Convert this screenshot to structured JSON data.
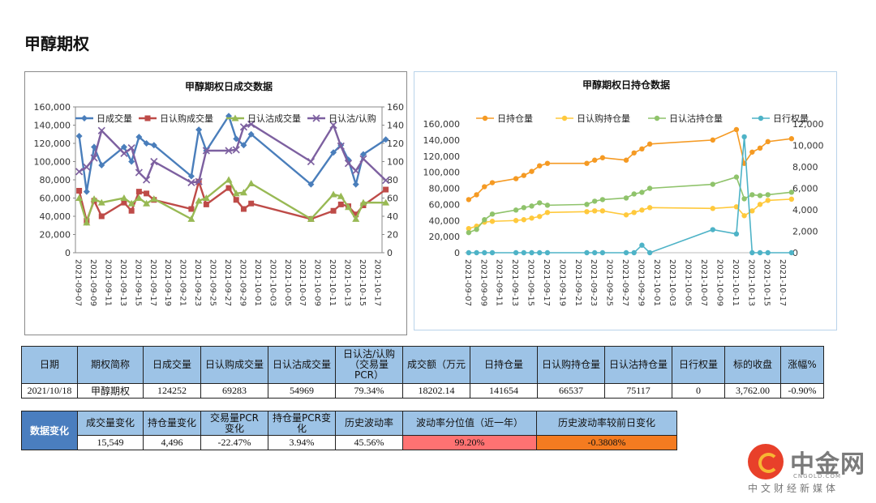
{
  "page": {
    "title": "甲醇期权"
  },
  "chart_data": [
    {
      "type": "line",
      "title": "甲醇期权日成交数据",
      "dates": [
        "2021-09-07",
        "2021-09-08",
        "2021-09-09",
        "2021-09-10",
        "2021-09-13",
        "2021-09-14",
        "2021-09-15",
        "2021-09-16",
        "2021-09-17",
        "2021-09-22",
        "2021-09-23",
        "2021-09-24",
        "2021-09-27",
        "2021-09-28",
        "2021-09-29",
        "2021-09-30",
        "2021-10-08",
        "2021-10-11",
        "2021-10-12",
        "2021-10-13",
        "2021-10-14",
        "2021-10-15",
        "2021-10-18"
      ],
      "x_tick_labels": [
        "2021-09-07",
        "2021-09-09",
        "2021-09-11",
        "2021-09-13",
        "2021-09-15",
        "2021-09-17",
        "2021-09-19",
        "2021-09-21",
        "2021-09-23",
        "2021-09-25",
        "2021-09-27",
        "2021-09-29",
        "2021-10-01",
        "2021-10-03",
        "2021-10-05",
        "2021-10-07",
        "2021-10-09",
        "2021-10-11",
        "2021-10-13",
        "2021-10-15",
        "2021-10-17"
      ],
      "y_left": {
        "range": [
          0,
          160000
        ],
        "ticks": [
          "0",
          "20,000",
          "40,000",
          "60,000",
          "80,000",
          "100,000",
          "120,000",
          "140,000",
          "160,000"
        ]
      },
      "y_right": {
        "range": [
          0,
          160
        ],
        "ticks": [
          "0",
          "20",
          "40",
          "60",
          "80",
          "100",
          "120",
          "140",
          "160"
        ]
      },
      "series": [
        {
          "name": "日成交量",
          "axis": "left",
          "color": "#4a7ebb",
          "marker": "diamond",
          "values": [
            128000,
            67000,
            116000,
            96000,
            116000,
            100000,
            127000,
            120000,
            118000,
            84000,
            135000,
            112000,
            150000,
            125000,
            118000,
            130000,
            75000,
            110000,
            118000,
            102000,
            75000,
            108000,
            124252
          ]
        },
        {
          "name": "日认购成交量",
          "axis": "left",
          "color": "#be4b48",
          "marker": "square",
          "values": [
            68000,
            35000,
            57000,
            40000,
            55000,
            46000,
            67000,
            65000,
            58000,
            48000,
            78000,
            53000,
            71000,
            58000,
            48000,
            54000,
            37000,
            46000,
            53000,
            51000,
            42000,
            52000,
            69283
          ]
        },
        {
          "name": "日认沽成交量",
          "axis": "left",
          "color": "#98b954",
          "marker": "triangle",
          "values": [
            60000,
            33000,
            59000,
            55000,
            60000,
            54000,
            60000,
            54000,
            59000,
            37000,
            57000,
            60000,
            80000,
            65000,
            66000,
            76000,
            37000,
            64000,
            62000,
            50000,
            37000,
            55000,
            54969
          ]
        },
        {
          "name": "日认沽/认购成交量PCR",
          "axis": "right",
          "color": "#7d60a0",
          "marker": "x",
          "values": [
            89,
            94,
            104,
            134,
            109,
            115,
            88,
            80,
            100,
            77,
            78,
            112,
            112,
            113,
            138,
            141,
            100,
            140,
            117,
            98,
            90,
            103,
            79.34
          ]
        }
      ],
      "legend_labels": [
        "日成交量",
        "日认购成交量",
        "日认沽成交量",
        "日认沽/认购"
      ]
    },
    {
      "type": "line",
      "title": "甲醇期权日持仓数据",
      "dates": [
        "2021-09-07",
        "2021-09-08",
        "2021-09-09",
        "2021-09-10",
        "2021-09-13",
        "2021-09-14",
        "2021-09-15",
        "2021-09-16",
        "2021-09-17",
        "2021-09-22",
        "2021-09-23",
        "2021-09-24",
        "2021-09-27",
        "2021-09-28",
        "2021-09-29",
        "2021-09-30",
        "2021-10-08",
        "2021-10-11",
        "2021-10-12",
        "2021-10-13",
        "2021-10-14",
        "2021-10-15",
        "2021-10-18"
      ],
      "x_tick_labels": [
        "2021-09-07",
        "2021-09-09",
        "2021-09-11",
        "2021-09-13",
        "2021-09-15",
        "2021-09-17",
        "2021-09-19",
        "2021-09-21",
        "2021-09-23",
        "2021-09-25",
        "2021-09-27",
        "2021-09-29",
        "2021-10-01",
        "2021-10-03",
        "2021-10-05",
        "2021-10-07",
        "2021-10-09",
        "2021-10-11",
        "2021-10-13",
        "2021-10-15",
        "2021-10-17"
      ],
      "y_left": {
        "range": [
          0,
          160000
        ],
        "ticks": [
          "0",
          "20,000",
          "40,000",
          "60,000",
          "80,000",
          "100,000",
          "120,000",
          "140,000",
          "160,000"
        ]
      },
      "y_right": {
        "range": [
          0,
          12000
        ],
        "ticks": [
          "0",
          "2,000",
          "4,000",
          "6,000",
          "8,000",
          "10,000",
          "12,000"
        ]
      },
      "series": [
        {
          "name": "日持仓量",
          "axis": "left",
          "color": "#f59a23",
          "values": [
            66000,
            72000,
            82000,
            87000,
            92000,
            96000,
            101000,
            108000,
            111000,
            111000,
            115000,
            118000,
            115000,
            124000,
            129000,
            135000,
            140000,
            153000,
            111000,
            125000,
            130000,
            138000,
            141654
          ]
        },
        {
          "name": "日认购持仓量",
          "axis": "left",
          "color": "#ffc93c",
          "values": [
            30000,
            33000,
            38000,
            39000,
            40000,
            41000,
            43000,
            45000,
            50000,
            51000,
            52000,
            52000,
            47000,
            50000,
            53000,
            56000,
            55000,
            57000,
            46000,
            52000,
            60000,
            65000,
            66537
          ]
        },
        {
          "name": "日认沽持仓量",
          "axis": "left",
          "color": "#8fc36b",
          "values": [
            25000,
            29000,
            41000,
            48000,
            53000,
            56000,
            58000,
            62000,
            59000,
            60000,
            64000,
            66000,
            68000,
            73000,
            75000,
            80000,
            85000,
            94000,
            67000,
            72000,
            71000,
            72000,
            75117
          ]
        },
        {
          "name": "日行权量",
          "axis": "right",
          "color": "#4eb3c7",
          "values": [
            0,
            0,
            0,
            0,
            0,
            0,
            0,
            0,
            0,
            0,
            0,
            0,
            0,
            0,
            700,
            0,
            2150,
            1750,
            10800,
            0,
            0,
            0,
            0
          ]
        }
      ],
      "legend_labels": [
        "日持仓量",
        "日认购持仓量",
        "日认沽持仓量",
        "日行权量"
      ]
    }
  ],
  "table1": {
    "headers": [
      "日期",
      "期权简称",
      "日成交量",
      "日认购成交量",
      "日认沽成交量",
      "日认沽/认购\n（交易量\nPCR）",
      "成交额（万元",
      "日持仓量",
      "日认购持仓量",
      "日认沽持仓量",
      "日行权量",
      "标的收盘",
      "涨幅%"
    ],
    "values": [
      "2021/10/18",
      "甲醇期权",
      "124252",
      "69283",
      "54969",
      "79.34%",
      "18202.14",
      "141654",
      "66537",
      "75117",
      "0",
      "3,762.00",
      "-0.90%"
    ]
  },
  "table2": {
    "label": "数据变化",
    "headers": [
      "成交量变化",
      "持仓量变化",
      "交易量PCR\n变化",
      "持仓量PCR变\n化",
      "历史波动率",
      "波动率分位值（近一年）",
      "历史波动率较前日变化"
    ],
    "values": [
      "15,549",
      "4,496",
      "-22.47%",
      "3.94%",
      "45.56%",
      "99.20%",
      "-0.3808%"
    ]
  },
  "logo": {
    "cn": "中金网",
    "en": "CNGOLD.COM",
    "tagline": "中文财经新媒体"
  }
}
